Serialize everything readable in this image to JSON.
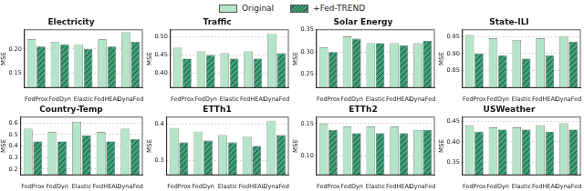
{
  "chart_data": [
    {
      "type": "bar",
      "title": "Electricity",
      "y_label": "MSE",
      "grid": true,
      "legend": "top",
      "categories": [
        "FedProx",
        "FedDyn",
        "Elastic",
        "FedHEAL",
        "DynaFed"
      ],
      "series": [
        {
          "name": "Original",
          "color": "#b5e5c8",
          "values": [
            0.22,
            0.215,
            0.21,
            0.22,
            0.235
          ]
        },
        {
          "name": "+Fed-TREND",
          "color": "#3f9f78",
          "values": [
            0.205,
            0.21,
            0.2,
            0.205,
            0.215
          ]
        }
      ],
      "ylim": [
        0.12,
        0.24
      ],
      "yticks": [
        0.15,
        {
          "value": 0.2,
          "label": "0.20"
        }
      ]
    },
    {
      "type": "bar",
      "title": "Traffic",
      "y_label": "MSE",
      "grid": true,
      "legend": "top",
      "categories": [
        "FedProx",
        "FedDyn",
        "Elastic",
        "FedHEAL",
        "DynaFed"
      ],
      "series": [
        {
          "name": "Original",
          "color": "#b5e5c8",
          "values": [
            0.47,
            0.46,
            0.455,
            0.46,
            0.51
          ]
        },
        {
          "name": "+Fed-TREND",
          "color": "#3f9f78",
          "values": [
            0.44,
            0.45,
            0.44,
            0.44,
            0.455
          ]
        }
      ],
      "ylim": [
        0.36,
        0.52
      ],
      "yticks": [
        {
          "value": 0.4,
          "label": "0.40"
        },
        0.45,
        {
          "value": 0.5,
          "label": "0.50"
        }
      ]
    },
    {
      "type": "bar",
      "title": "Solar Energy",
      "y_label": "MSE",
      "grid": true,
      "legend": "top",
      "categories": [
        "FedProx",
        "FedDyn",
        "Elastic",
        "FedHEAL",
        "DynaFed"
      ],
      "series": [
        {
          "name": "Original",
          "color": "#b5e5c8",
          "values": [
            0.31,
            0.335,
            0.32,
            0.32,
            0.32
          ]
        },
        {
          "name": "+Fed-TREND",
          "color": "#3f9f78",
          "values": [
            0.3,
            0.33,
            0.32,
            0.315,
            0.325
          ]
        }
      ],
      "ylim": [
        0.22,
        0.35
      ],
      "yticks": [
        0.25,
        {
          "value": 0.3,
          "label": "0.30"
        },
        0.35
      ]
    },
    {
      "type": "bar",
      "title": "State-ILI",
      "y_label": "MSE",
      "grid": true,
      "legend": "top",
      "categories": [
        "FedProx",
        "FedDyn",
        "Elastic",
        "FedHEAL",
        "DynaFed"
      ],
      "series": [
        {
          "name": "Original",
          "color": "#b5e5c8",
          "values": [
            0.955,
            0.945,
            0.94,
            0.945,
            0.95
          ]
        },
        {
          "name": "+Fed-TREND",
          "color": "#3f9f78",
          "values": [
            0.9,
            0.895,
            0.885,
            0.895,
            0.935
          ]
        }
      ],
      "ylim": [
        0.8,
        0.97
      ],
      "yticks": [
        0.85,
        {
          "value": 0.9,
          "label": "0.90"
        },
        0.95
      ]
    },
    {
      "type": "bar",
      "title": "Country-Temp",
      "y_label": "MSE",
      "grid": true,
      "legend": "top",
      "categories": [
        "FedProx",
        "FedDyn",
        "Elastic",
        "FedHEAL",
        "DynaFed"
      ],
      "series": [
        {
          "name": "Original",
          "color": "#b5e5c8",
          "values": [
            0.55,
            0.52,
            0.61,
            0.52,
            0.55
          ]
        },
        {
          "name": "+Fed-TREND",
          "color": "#3f9f78",
          "values": [
            0.44,
            0.44,
            0.49,
            0.44,
            0.46
          ]
        }
      ],
      "ylim": [
        0.15,
        0.65
      ],
      "yticks": [
        0.2,
        0.3,
        0.4,
        0.5,
        0.6
      ]
    },
    {
      "type": "bar",
      "title": "ETTh1",
      "y_label": "MSE",
      "grid": true,
      "legend": "top",
      "categories": [
        "FedProx",
        "FedDyn",
        "Elastic",
        "FedHEAL",
        "DynaFed"
      ],
      "series": [
        {
          "name": "Original",
          "color": "#b5e5c8",
          "values": [
            0.39,
            0.38,
            0.37,
            0.365,
            0.41
          ]
        },
        {
          "name": "+Fed-TREND",
          "color": "#3f9f78",
          "values": [
            0.35,
            0.355,
            0.35,
            0.34,
            0.37
          ]
        }
      ],
      "ylim": [
        0.26,
        0.42
      ],
      "yticks": [
        0.3,
        0.4
      ]
    },
    {
      "type": "bar",
      "title": "ETTh2",
      "y_label": "MSE",
      "grid": true,
      "legend": "top",
      "categories": [
        "FedProx",
        "FedDyn",
        "Elastic",
        "FedHEAL",
        "DynaFed"
      ],
      "series": [
        {
          "name": "Original",
          "color": "#b5e5c8",
          "values": [
            0.15,
            0.145,
            0.145,
            0.145,
            0.14
          ]
        },
        {
          "name": "+Fed-TREND",
          "color": "#3f9f78",
          "values": [
            0.14,
            0.135,
            0.135,
            0.135,
            0.14
          ]
        }
      ],
      "ylim": [
        0.07,
        0.16
      ],
      "yticks": [
        {
          "value": 0.1,
          "label": "0.10"
        },
        0.15
      ]
    },
    {
      "type": "bar",
      "title": "USWeather",
      "y_label": "MSE",
      "grid": true,
      "legend": "top",
      "categories": [
        "FedProx",
        "FedDyn",
        "Elastic",
        "FedHEAL",
        "DynaFed"
      ],
      "series": [
        {
          "name": "Original",
          "color": "#b5e5c8",
          "values": [
            0.44,
            0.435,
            0.435,
            0.44,
            0.445
          ]
        },
        {
          "name": "+Fed-TREND",
          "color": "#3f9f78",
          "values": [
            0.425,
            0.43,
            0.43,
            0.425,
            0.43
          ]
        }
      ],
      "ylim": [
        0.32,
        0.46
      ],
      "yticks": [
        0.35,
        {
          "value": 0.4,
          "label": "0.40"
        },
        0.45
      ]
    }
  ]
}
